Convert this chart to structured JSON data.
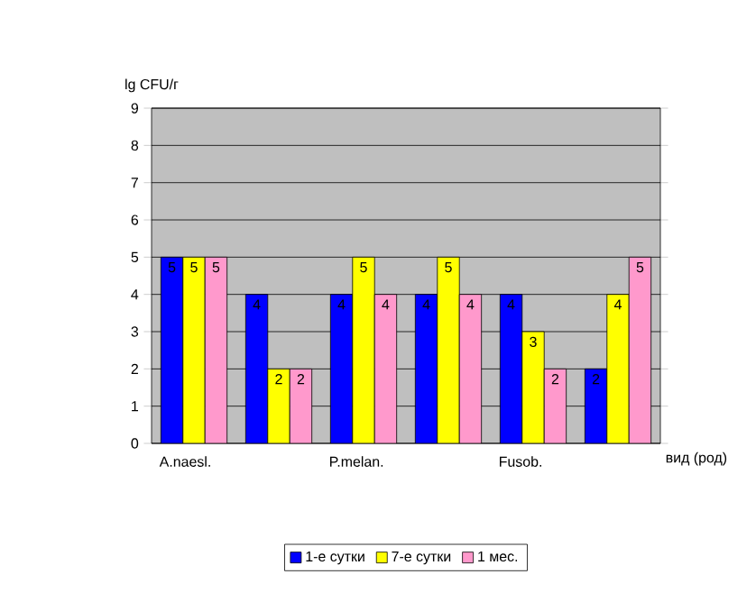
{
  "chart_data": {
    "type": "bar",
    "ylabel": "lg CFU/г",
    "xlabel": "вид (род)",
    "categories": [
      "A.naesl.",
      null,
      "P.melan.",
      null,
      "Fusob.",
      null
    ],
    "series": [
      {
        "name": "1-е сутки",
        "color": "#0000ff",
        "values": [
          5,
          4,
          4,
          4,
          4,
          2
        ]
      },
      {
        "name": "7-е сутки",
        "color": "#ffff00",
        "values": [
          5,
          2,
          5,
          5,
          3,
          4
        ]
      },
      {
        "name": "1 мес.",
        "color": "#ff99cc",
        "values": [
          5,
          2,
          4,
          4,
          2,
          5
        ]
      }
    ],
    "ylim": [
      0,
      9
    ],
    "yticks": [
      0,
      1,
      2,
      3,
      4,
      5,
      6,
      7,
      8,
      9
    ],
    "grid": "y",
    "legend": "bottom",
    "data_labels": true
  }
}
